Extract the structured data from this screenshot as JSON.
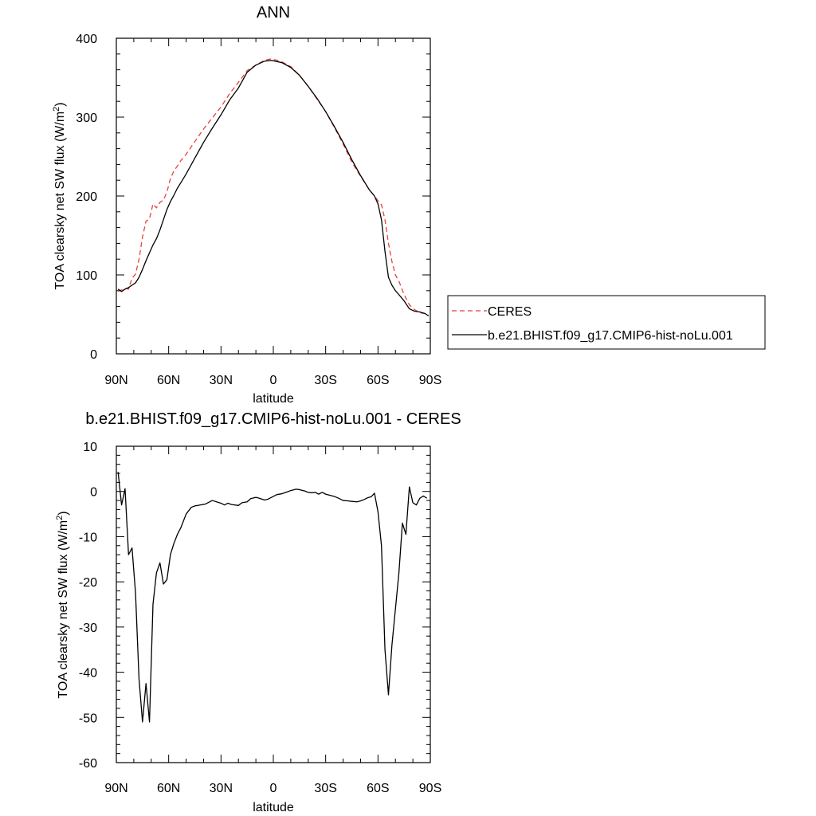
{
  "chart_data": [
    {
      "type": "line",
      "title": "ANN",
      "xlabel": "latitude",
      "ylabel_main": "TOA clearsky net SW flux (W/m",
      "ylabel_sup": "2",
      "ylabel_close": ")",
      "xlim": [
        90,
        -90
      ],
      "ylim": [
        0,
        400
      ],
      "x_ticks": [
        90,
        60,
        30,
        0,
        -30,
        -60,
        -90
      ],
      "x_tick_labels": [
        "90N",
        "60N",
        "30N",
        "0",
        "30S",
        "60S",
        "90S"
      ],
      "y_ticks": [
        0,
        100,
        200,
        300,
        400
      ],
      "y_tick_labels": [
        "0",
        "100",
        "200",
        "300",
        "400"
      ],
      "grid": false,
      "legend_position": "right",
      "series": [
        {
          "name": "CERES",
          "color": "#e8413a",
          "dash": "dashed",
          "x": [
            89,
            87,
            85,
            83,
            81,
            79,
            77,
            75,
            73,
            71,
            69,
            67,
            65,
            63,
            61,
            59,
            57,
            55,
            53,
            50,
            45,
            40,
            35,
            30,
            25,
            20,
            15,
            10,
            5,
            1,
            -5,
            -10,
            -15,
            -20,
            -25,
            -30,
            -35,
            -40,
            -45,
            -50,
            -55,
            -58,
            -60,
            -62,
            -64,
            -66,
            -68,
            -70,
            -72,
            -75,
            -78,
            -81,
            -84,
            -87,
            -89
          ],
          "y": [
            79,
            81,
            83,
            82,
            96,
            101,
            120,
            148,
            168,
            171,
            190,
            185,
            192,
            195,
            205,
            222,
            232,
            238,
            245,
            253,
            269,
            285,
            299,
            313,
            330,
            344,
            359,
            366,
            372,
            374,
            370,
            364,
            353,
            339,
            323,
            307,
            287,
            266,
            243,
            225,
            208,
            200,
            194,
            189,
            170,
            140,
            117,
            100,
            92,
            75,
            62,
            56,
            52,
            51,
            49
          ]
        },
        {
          "name": "b.e21.BHIST.f09_g17.CMIP6-hist-noLu.001",
          "color": "#000000",
          "dash": "solid",
          "x": [
            89,
            87,
            85,
            83,
            81,
            79,
            77,
            75,
            73,
            71,
            69,
            67,
            65,
            63,
            61,
            59,
            57,
            55,
            53,
            50,
            45,
            40,
            35,
            30,
            25,
            20,
            15,
            10,
            5,
            1,
            -5,
            -10,
            -15,
            -20,
            -25,
            -30,
            -35,
            -40,
            -45,
            -50,
            -55,
            -58,
            -60,
            -62,
            -64,
            -66,
            -68,
            -70,
            -72,
            -75,
            -78,
            -81,
            -84,
            -87,
            -89
          ],
          "y": [
            82,
            79,
            82,
            84,
            87,
            90,
            97,
            107,
            118,
            128,
            138,
            146,
            157,
            170,
            183,
            193,
            201,
            210,
            217,
            228,
            248,
            268,
            286,
            303,
            322,
            337,
            357,
            366,
            371,
            372,
            369,
            363,
            353,
            339,
            324,
            307,
            288,
            268,
            246,
            226,
            208,
            200,
            190,
            170,
            130,
            97,
            87,
            80,
            75,
            67,
            57,
            54,
            53,
            51,
            48
          ]
        }
      ]
    },
    {
      "type": "line",
      "title": "b.e21.BHIST.f09_g17.CMIP6-hist-noLu.001 - CERES",
      "xlabel": "latitude",
      "ylabel_main": "TOA clearsky net SW flux (W/m",
      "ylabel_sup": "2",
      "ylabel_close": ")",
      "xlim": [
        90,
        -90
      ],
      "ylim": [
        -60,
        10
      ],
      "x_ticks": [
        90,
        60,
        30,
        0,
        -30,
        -60,
        -90
      ],
      "x_tick_labels": [
        "90N",
        "60N",
        "30N",
        "0",
        "30S",
        "60S",
        "90S"
      ],
      "y_ticks": [
        10,
        0,
        -10,
        -20,
        -30,
        -40,
        -50,
        -60
      ],
      "y_tick_labels": [
        "10",
        "0",
        "-10",
        "-20",
        "-30",
        "-40",
        "-50",
        "-60"
      ],
      "grid": false,
      "series": [
        {
          "color": "#000000",
          "dash": "solid",
          "x": [
            89,
            87,
            85,
            83,
            81,
            79,
            77,
            75,
            73,
            71,
            69,
            67,
            65,
            63,
            61,
            59,
            57,
            55,
            53,
            50,
            47,
            45,
            42,
            39,
            35,
            30,
            28,
            26,
            24,
            20,
            18,
            15,
            13,
            10,
            8,
            5,
            3,
            0,
            -2,
            -5,
            -8,
            -10,
            -13,
            -15,
            -18,
            -20,
            -22,
            -24,
            -26,
            -28,
            -30,
            -33,
            -35,
            -38,
            -40,
            -43,
            -45,
            -48,
            -50,
            -52,
            -54,
            -56,
            -58,
            -60,
            -62,
            -64,
            -66,
            -68,
            -70,
            -72,
            -74,
            -76,
            -78,
            -80,
            -82,
            -84,
            -86,
            -88
          ],
          "y": [
            4.3,
            -3.0,
            0.6,
            -14.0,
            -12.5,
            -22.5,
            -41.5,
            -51.0,
            -42.5,
            -51.0,
            -25.0,
            -18.0,
            -15.8,
            -20.5,
            -19.5,
            -14.0,
            -11.5,
            -9.5,
            -8.0,
            -5.0,
            -3.5,
            -3.2,
            -3.0,
            -2.8,
            -2.0,
            -2.6,
            -3.0,
            -2.6,
            -2.9,
            -3.1,
            -2.5,
            -2.3,
            -1.6,
            -1.3,
            -1.5,
            -1.9,
            -1.7,
            -1.1,
            -0.7,
            -0.5,
            -0.1,
            0.2,
            0.5,
            0.4,
            0.1,
            -0.2,
            -0.3,
            -0.2,
            -0.6,
            -0.2,
            -0.6,
            -0.9,
            -1.1,
            -1.6,
            -2.0,
            -2.1,
            -2.2,
            -2.3,
            -2.1,
            -1.8,
            -1.4,
            -1.2,
            -0.4,
            -4.5,
            -12.0,
            -35.0,
            -45.0,
            -34.0,
            -26.0,
            -18.0,
            -7.0,
            -9.5,
            1.0,
            -2.5,
            -3.0,
            -1.5,
            -1.0,
            -1.5
          ]
        }
      ]
    }
  ]
}
